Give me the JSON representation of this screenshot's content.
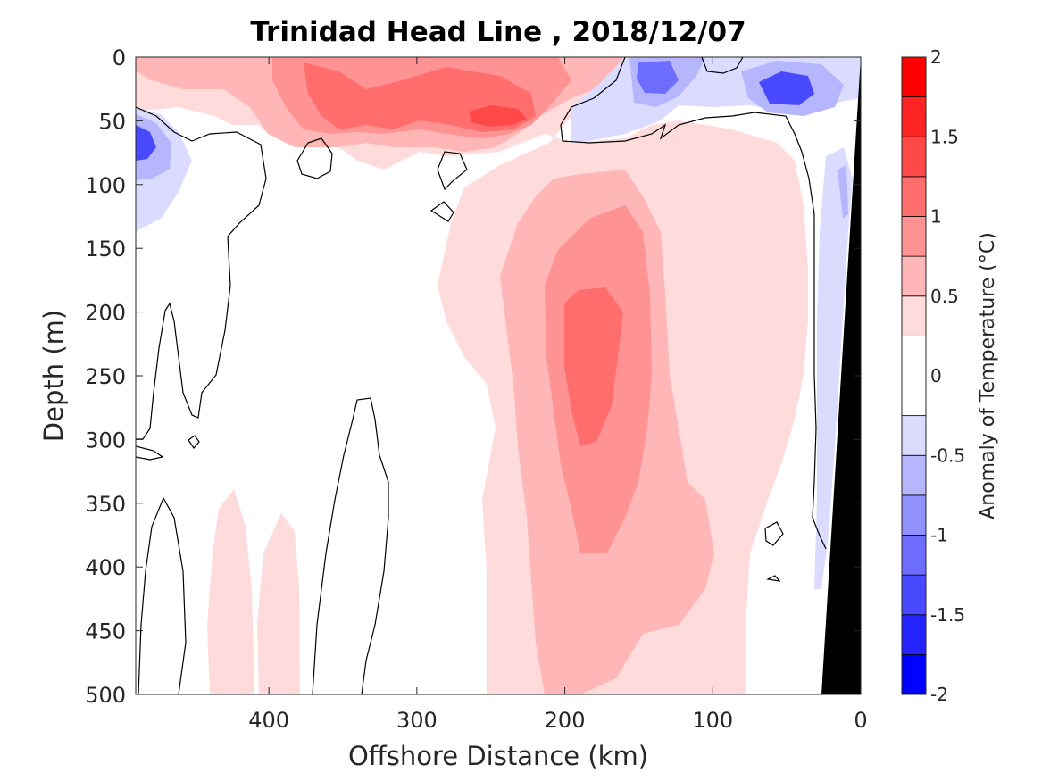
{
  "chart_data": {
    "type": "heatmap",
    "title": "Trinidad Head Line , 2018/12/07",
    "xlabel": "Offshore Distance (km)",
    "ylabel": "Depth (m)",
    "xlim": [
      490,
      0
    ],
    "ylim": [
      0,
      500
    ],
    "x_ticks": [
      400,
      300,
      200,
      100,
      0
    ],
    "y_ticks": [
      0,
      50,
      100,
      150,
      200,
      250,
      300,
      350,
      400,
      450,
      500
    ],
    "colorbar": {
      "label": "Anomaly of Temperature (°C)",
      "ticks": [
        2,
        1.5,
        1,
        0.5,
        0,
        -0.5,
        -1,
        -1.5,
        -2
      ],
      "levels": [
        -2,
        -1.75,
        -1.5,
        -1.25,
        -1,
        -0.75,
        -0.5,
        -0.25,
        0.25,
        0.5,
        0.75,
        1,
        1.25,
        1.5,
        1.75,
        2
      ],
      "colors": [
        "#0000ff",
        "#2424ff",
        "#4949ff",
        "#6d6dff",
        "#9292ff",
        "#b6b6ff",
        "#dbdbff",
        "#ffffff",
        "#ffdbdb",
        "#ffb6b6",
        "#ff9292",
        "#ff6d6d",
        "#ff4949",
        "#ff2424",
        "#ff0000"
      ]
    },
    "regions": [
      {
        "label": "surface warm core near 240 km",
        "level": 1.25,
        "x_km": [
          275,
          200
        ],
        "depth_m": [
          30,
          60
        ]
      },
      {
        "label": "surface warm band",
        "level": 0.75,
        "x_km": [
          400,
          160
        ],
        "depth_m": [
          0,
          70
        ]
      },
      {
        "label": "subsurface warm plume",
        "level": 1.0,
        "x_km": [
          210,
          160
        ],
        "depth_m": [
          180,
          310
        ]
      },
      {
        "label": "deep warm plume",
        "level": 0.75,
        "x_km": [
          230,
          140
        ],
        "depth_m": [
          110,
          500
        ]
      },
      {
        "label": "offshore cold pocket",
        "level": -1.25,
        "x_km": [
          490,
          460
        ],
        "depth_m": [
          40,
          110
        ]
      },
      {
        "label": "nearshore cold lens 1",
        "level": -1.0,
        "x_km": [
          150,
          120
        ],
        "depth_m": [
          0,
          40
        ]
      },
      {
        "label": "nearshore cold lens 2",
        "level": -1.0,
        "x_km": [
          70,
          30
        ],
        "depth_m": [
          10,
          50
        ]
      },
      {
        "label": "coastal cold band",
        "level": -0.5,
        "x_km": [
          40,
          20
        ],
        "depth_m": [
          80,
          480
        ]
      }
    ],
    "bathymetry": {
      "x_km": [
        0,
        0,
        25
      ],
      "depth_m": [
        0,
        500,
        500
      ]
    }
  }
}
